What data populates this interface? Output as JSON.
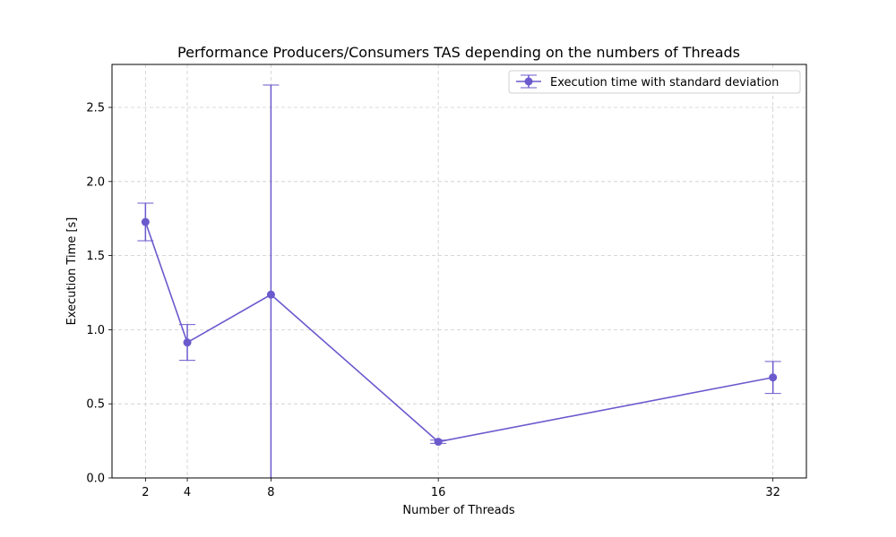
{
  "chart_data": {
    "type": "line",
    "title": "Performance Producers/Consumers TAS depending on the numbers of Threads",
    "xlabel": "Number of Threads",
    "ylabel": "Execution Time [s]",
    "x": [
      2,
      4,
      8,
      16,
      32
    ],
    "xticks": [
      "2",
      "4",
      "8",
      "16",
      "32"
    ],
    "yticks": [
      "0.0",
      "0.5",
      "1.0",
      "1.5",
      "2.0",
      "2.5"
    ],
    "xlim": [
      0.4,
      33.6
    ],
    "ylim": [
      0.0,
      2.79
    ],
    "grid": true,
    "legend_position": "upper right",
    "series": [
      {
        "name": "Execution time with standard deviation",
        "color": "#6a5acd",
        "values": [
          1.727,
          0.914,
          1.237,
          0.244,
          0.678
        ],
        "errors": [
          0.127,
          0.121,
          1.414,
          0.011,
          0.108
        ]
      }
    ]
  }
}
